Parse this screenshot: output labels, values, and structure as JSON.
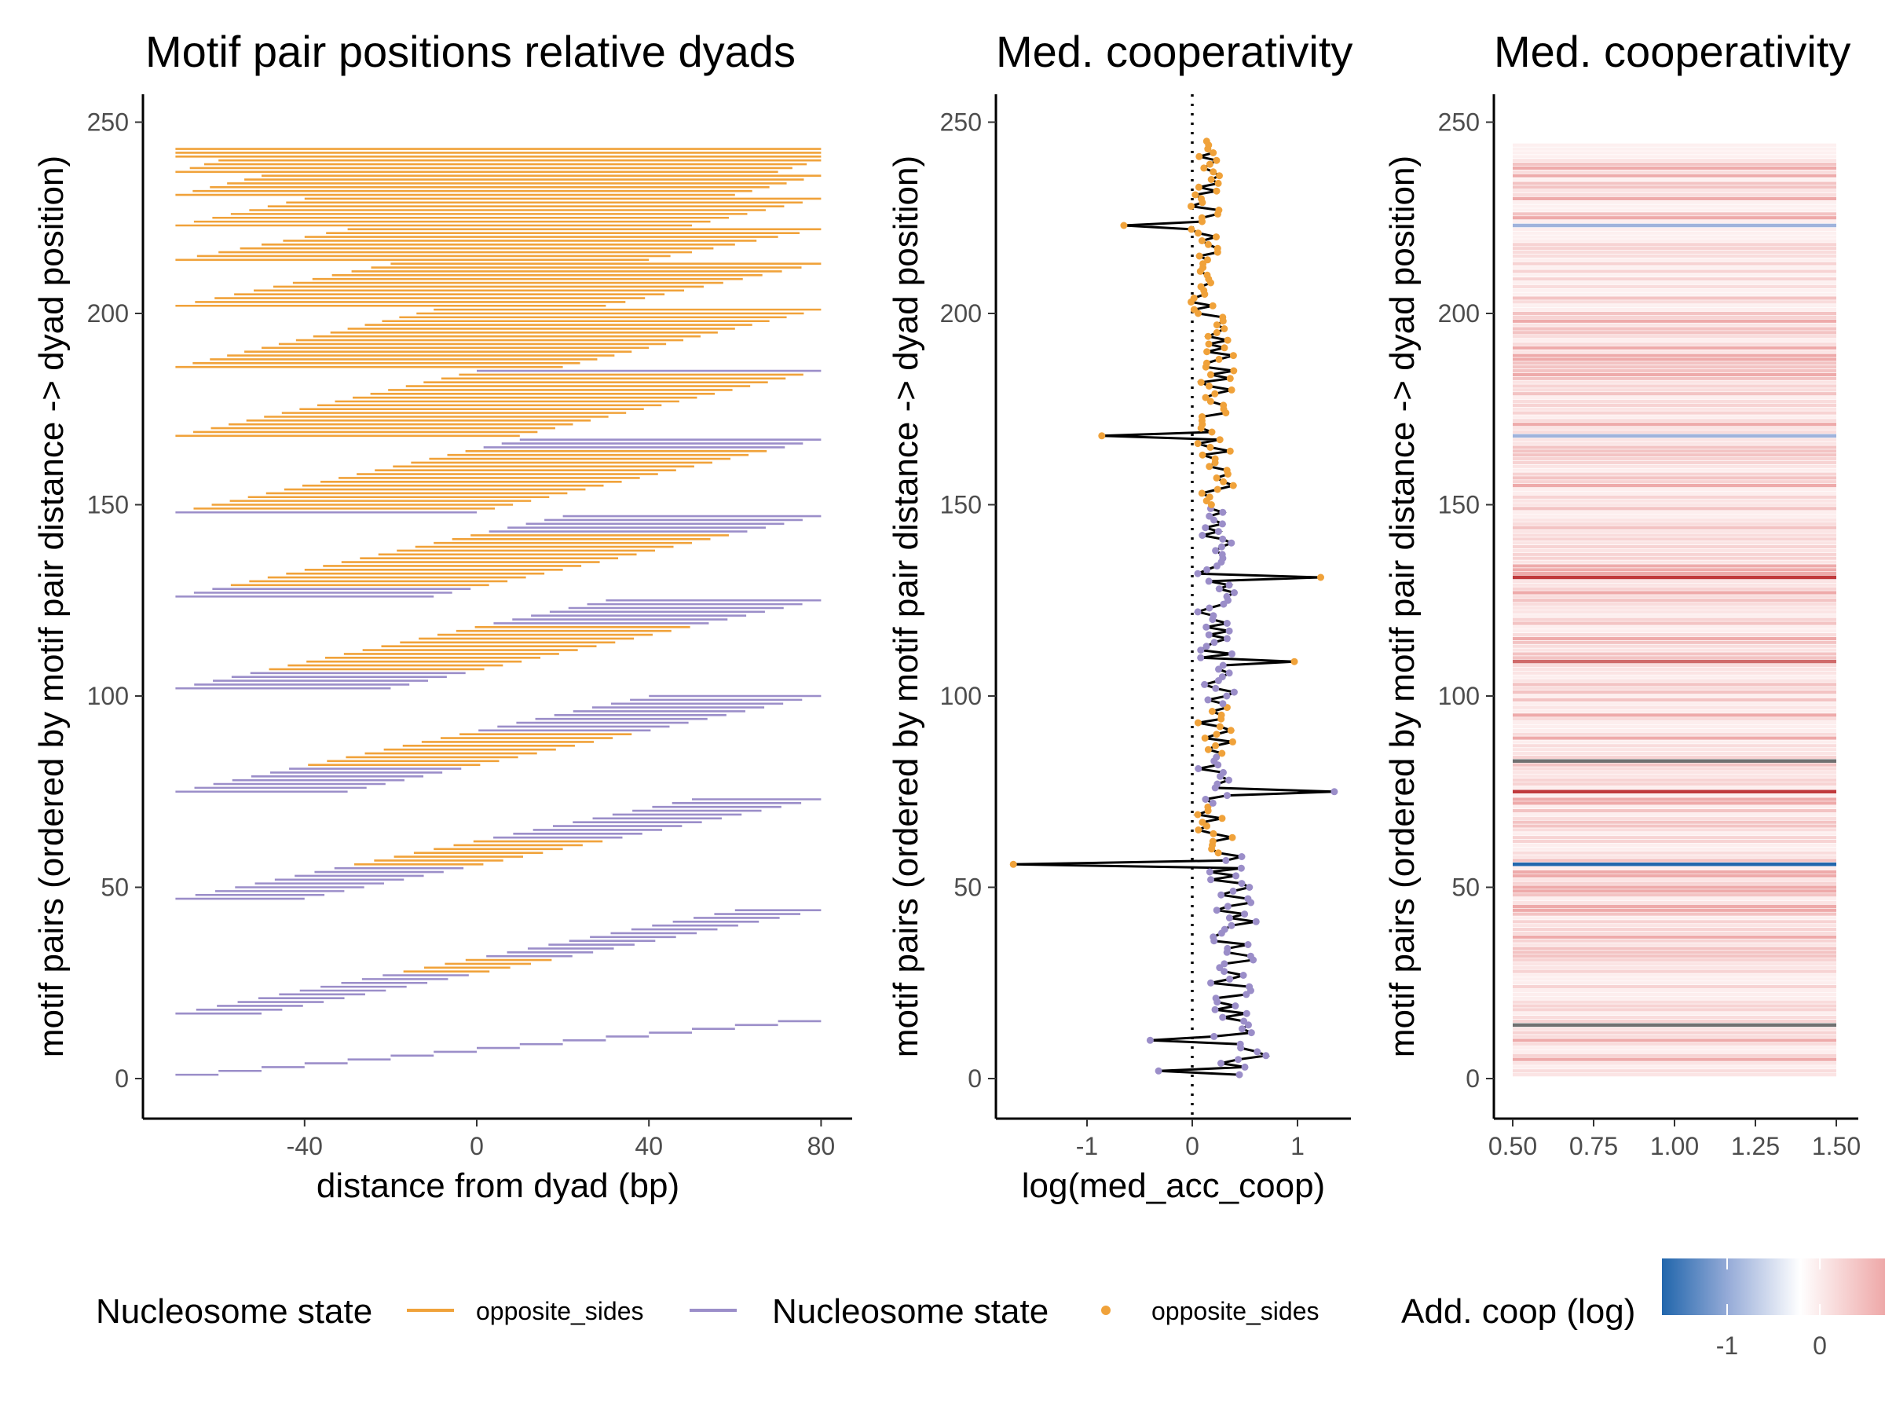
{
  "chart_data": [
    {
      "type": "segments",
      "title": "Motif pair positions relative dyads",
      "xlabel": "distance from dyad (bp)",
      "ylabel": "motif pairs (ordered by motif pair distance -> dyad position)",
      "xlim": [
        -76,
        87
      ],
      "ylim": [
        -11,
        257
      ],
      "x_ticks": [
        "-40",
        "0",
        "40",
        "80"
      ],
      "y_ticks": [
        "0",
        "50",
        "100",
        "150",
        "200",
        "250"
      ],
      "colors": {
        "opposite_sides": "#f0a23a",
        "other_state": "#9b8ec9"
      },
      "segment_bands": [
        {
          "y_start": 1,
          "length": 10,
          "n": 15,
          "x_start": -70,
          "x_end": 80
        },
        {
          "y_start": 17,
          "length": 20,
          "n": 28,
          "x_start": -70,
          "x_end": 80
        },
        {
          "y_start": 47,
          "length": 30,
          "n": 27,
          "x_start": -70,
          "x_end": 80
        },
        {
          "y_start": 75,
          "length": 40,
          "n": 26,
          "x_start": -70,
          "x_end": 80
        },
        {
          "y_start": 102,
          "length": 50,
          "n": 24,
          "x_start": -70,
          "x_end": 80
        },
        {
          "y_start": 126,
          "length": 60,
          "n": 22,
          "x_start": -70,
          "x_end": 80
        },
        {
          "y_start": 148,
          "length": 70,
          "n": 20,
          "x_start": -70,
          "x_end": 80
        },
        {
          "y_start": 168,
          "length": 80,
          "n": 18,
          "x_start": -70,
          "x_end": 80
        },
        {
          "y_start": 186,
          "length": 90,
          "n": 16,
          "x_start": -70,
          "x_end": 80
        },
        {
          "y_start": 202,
          "length": 100,
          "n": 12,
          "x_start": -70,
          "x_end": 80
        },
        {
          "y_start": 214,
          "length": 110,
          "n": 9,
          "x_start": -70,
          "x_end": 80
        },
        {
          "y_start": 223,
          "length": 120,
          "n": 8,
          "x_start": -70,
          "x_end": 80
        },
        {
          "y_start": 231,
          "length": 130,
          "n": 6,
          "x_start": -70,
          "x_end": 80
        },
        {
          "y_start": 237,
          "length": 140,
          "n": 4,
          "x_start": -70,
          "x_end": 80
        },
        {
          "y_start": 241,
          "length": 150,
          "n": 3,
          "x_start": -70,
          "x_end": 80
        }
      ]
    },
    {
      "type": "line",
      "title": "Med. cooperativity",
      "xlabel": "log(med_acc_coop)",
      "ylabel": "motif pairs (ordered by motif pair distance -> dyad position)",
      "xlim": [
        -1.85,
        1.5
      ],
      "ylim": [
        -11,
        257
      ],
      "x_ticks": [
        "-1",
        "0",
        "1"
      ],
      "y_ticks": [
        "0",
        "50",
        "100",
        "150",
        "200",
        "250"
      ],
      "vline_x": 0,
      "outliers": [
        {
          "y": 2,
          "x": -0.32
        },
        {
          "y": 3,
          "x": 0.5
        },
        {
          "y": 6,
          "x": 0.7
        },
        {
          "y": 10,
          "x": -0.4
        },
        {
          "y": 56,
          "x": -1.7
        },
        {
          "y": 75,
          "x": 1.35
        },
        {
          "y": 109,
          "x": 0.97
        },
        {
          "y": 131,
          "x": 1.22
        },
        {
          "y": 168,
          "x": -0.86
        },
        {
          "y": 223,
          "x": -0.65
        }
      ]
    },
    {
      "type": "heatmap",
      "title": "Med. cooperativity",
      "ylabel": "motif pairs (ordered by motif pair distance -> dyad position)",
      "xlim": [
        0.45,
        1.55
      ],
      "ylim": [
        -11,
        257
      ],
      "x_ticks": [
        "0.50",
        "0.75",
        "1.00",
        "1.25",
        "1.50"
      ],
      "y_ticks": [
        "0",
        "50",
        "100",
        "150",
        "200",
        "250"
      ],
      "strong_rows": [
        {
          "y": 14,
          "color": "#707070"
        },
        {
          "y": 56,
          "color": "#2166ac"
        },
        {
          "y": 75,
          "color": "#c0393c"
        },
        {
          "y": 83,
          "color": "#707070"
        },
        {
          "y": 109,
          "color": "#d06a6a"
        },
        {
          "y": 131,
          "color": "#c0393c"
        },
        {
          "y": 168,
          "color": "#9fb3dc"
        },
        {
          "y": 223,
          "color": "#9fb3dc"
        }
      ],
      "colorbar_ticks": [
        "-1",
        "0"
      ]
    }
  ],
  "legend": {
    "title_1": "Nucleosome state",
    "label_1": "opposite_sides",
    "title_2": "Nucleosome state",
    "label_2": "opposite_sides",
    "title_3": "Add. coop (log)"
  }
}
